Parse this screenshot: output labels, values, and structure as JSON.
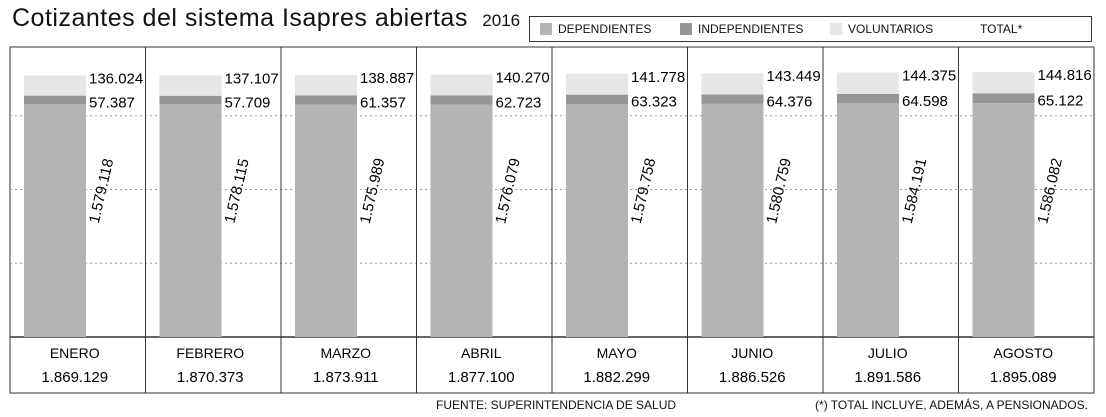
{
  "chart_data": {
    "type": "bar",
    "title": "Cotizantes del sistema Isapres abiertas",
    "subtitle": "2016",
    "categories": [
      "ENERO",
      "FEBRERO",
      "MARZO",
      "ABRIL",
      "MAYO",
      "JUNIO",
      "JULIO",
      "AGOSTO"
    ],
    "series": [
      {
        "name": "DEPENDIENTES",
        "values": [
          1579118,
          1578115,
          1575989,
          1576079,
          1579758,
          1580759,
          1584191,
          1586082
        ],
        "labels": [
          "1.579.118",
          "1.578.115",
          "1.575.989",
          "1.576.079",
          "1.579.758",
          "1.580.759",
          "1.584.191",
          "1.586.082"
        ],
        "color": "#b4b4b4"
      },
      {
        "name": "INDEPENDIENTES",
        "values": [
          57387,
          57709,
          61357,
          62723,
          63323,
          64376,
          64598,
          65122
        ],
        "labels": [
          "57.387",
          "57.709",
          "61.357",
          "62.723",
          "63.323",
          "64.376",
          "64.598",
          "65.122"
        ],
        "color": "#969696"
      },
      {
        "name": "VOLUNTARIOS",
        "values": [
          136024,
          137107,
          138887,
          140270,
          141778,
          143449,
          144375,
          144816
        ],
        "labels": [
          "136.024",
          "137.107",
          "138.887",
          "140.270",
          "141.778",
          "143.449",
          "144.375",
          "144.816"
        ],
        "color": "#e6e6e6"
      }
    ],
    "totals": {
      "name": "TOTAL*",
      "values": [
        1869129,
        1870373,
        1873911,
        1877100,
        1882299,
        1886526,
        1891586,
        1895089
      ],
      "labels": [
        "1.869.129",
        "1.870.373",
        "1.873.911",
        "1.877.100",
        "1.882.299",
        "1.886.526",
        "1.891.586",
        "1.895.089"
      ]
    },
    "ylim": [
      0,
      2000000
    ],
    "grid": true,
    "legend_position": "top-right",
    "source": "FUENTE: SUPERINTENDENCIA DE SALUD",
    "footnote": "(*) TOTAL INCLUYE, ADEMÁS, A PENSIONADOS."
  }
}
